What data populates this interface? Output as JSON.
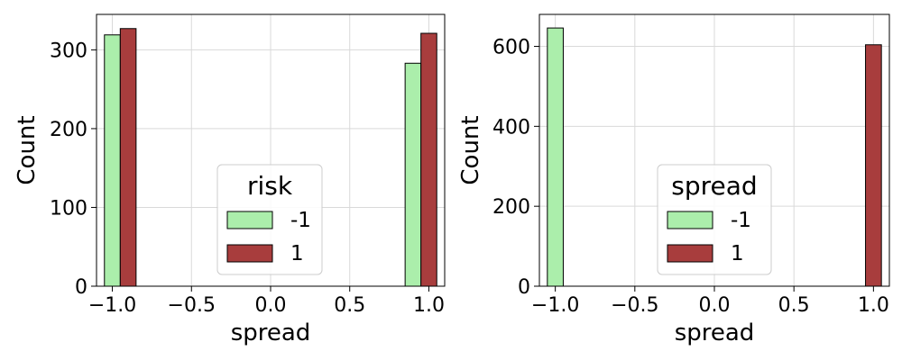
{
  "chart_data": [
    {
      "type": "bar",
      "title": "",
      "xlabel": "spread",
      "ylabel": "Count",
      "xlim": [
        -1.1,
        1.1
      ],
      "ylim": [
        0,
        345
      ],
      "xticks": [
        -1.0,
        -0.5,
        0.0,
        0.5,
        1.0
      ],
      "xtick_labels": [
        "−1.0",
        "−0.5",
        "0.0",
        "0.5",
        "1.0"
      ],
      "yticks": [
        0,
        100,
        200,
        300
      ],
      "ytick_labels": [
        "0",
        "100",
        "200",
        "300"
      ],
      "grid": true,
      "legend": {
        "title": "risk",
        "placement": "lower center"
      },
      "bin_width": 0.1,
      "series": [
        {
          "name": "-1",
          "color": "#abeeab",
          "bins": [
            {
              "x": -1.0,
              "count": 319
            },
            {
              "x": 0.9,
              "count": 283
            }
          ]
        },
        {
          "name": "1",
          "color": "#a83d3d",
          "bins": [
            {
              "x": -0.9,
              "count": 327
            },
            {
              "x": 1.0,
              "count": 321
            }
          ]
        }
      ]
    },
    {
      "type": "bar",
      "title": "",
      "xlabel": "spread",
      "ylabel": "Count",
      "xlim": [
        -1.1,
        1.1
      ],
      "ylim": [
        0,
        680
      ],
      "xticks": [
        -1.0,
        -0.5,
        0.0,
        0.5,
        1.0
      ],
      "xtick_labels": [
        "−1.0",
        "−0.5",
        "0.0",
        "0.5",
        "1.0"
      ],
      "yticks": [
        0,
        200,
        400,
        600
      ],
      "ytick_labels": [
        "0",
        "200",
        "400",
        "600"
      ],
      "grid": true,
      "legend": {
        "title": "spread",
        "placement": "lower center"
      },
      "bin_width": 0.1,
      "series": [
        {
          "name": "-1",
          "color": "#abeeab",
          "bins": [
            {
              "x": -1.0,
              "count": 646
            }
          ]
        },
        {
          "name": "1",
          "color": "#a83d3d",
          "bins": [
            {
              "x": 1.0,
              "count": 604
            }
          ]
        }
      ]
    }
  ]
}
